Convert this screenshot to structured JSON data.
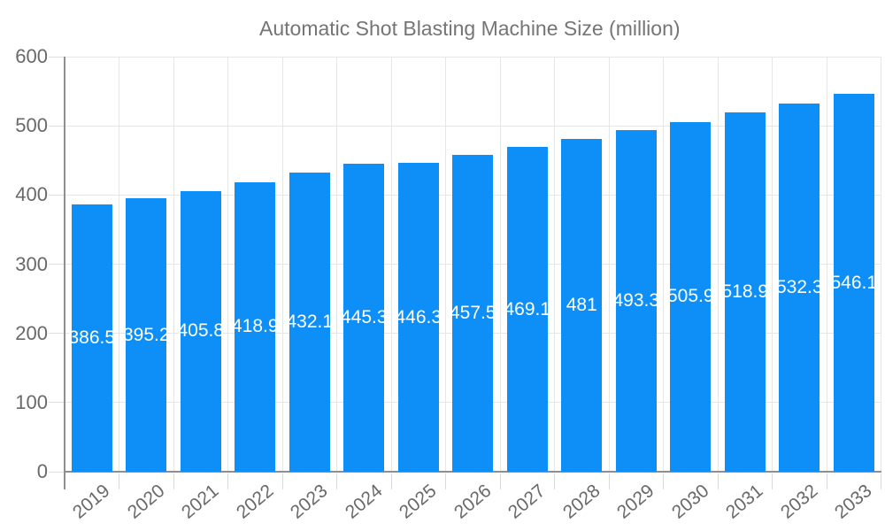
{
  "legend": {
    "label": "Automatic Shot Blasting Machine Size (million)"
  },
  "colors": {
    "bar": "#0e8ff7",
    "grid": "#e6e6e6",
    "axis": "#8f8f8f",
    "axis_text": "#696969",
    "legend_text": "#757575",
    "bar_label_text": "#ffffff"
  },
  "chart_data": {
    "type": "bar",
    "title": "Automatic Shot Blasting Machine Size (million)",
    "categories": [
      "2019",
      "2020",
      "2021",
      "2022",
      "2023",
      "2024",
      "2025",
      "2026",
      "2027",
      "2028",
      "2029",
      "2030",
      "2031",
      "2032",
      "2033"
    ],
    "values": [
      386.5,
      395.2,
      405.8,
      418.9,
      432.1,
      445.3,
      446.3,
      457.5,
      469.1,
      481,
      493.3,
      505.9,
      518.9,
      532.3,
      546.1
    ],
    "value_labels": [
      "386.5",
      "395.2",
      "405.8",
      "418.9",
      "432.1",
      "445.3",
      "446.3",
      "457.5",
      "469.1",
      "481",
      "493.3",
      "505.9",
      "518.9",
      "532.3",
      "546.1"
    ],
    "xlabel": "",
    "ylabel": "",
    "ylim": [
      0,
      600
    ],
    "yticks": [
      0,
      100,
      200,
      300,
      400,
      500,
      600
    ],
    "grid": true,
    "legend_position": "top",
    "bar_label_position": "middle",
    "x_tick_rotation_deg": -40
  }
}
